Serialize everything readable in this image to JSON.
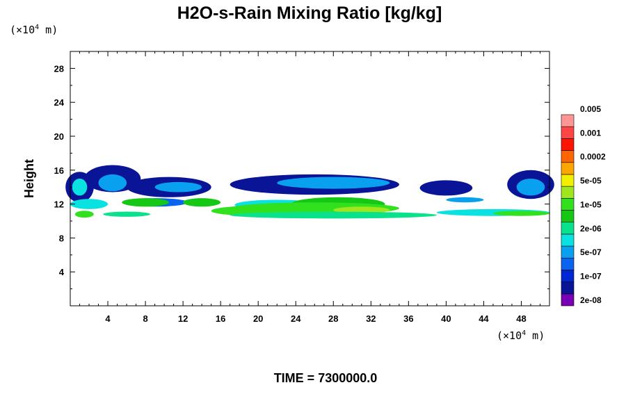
{
  "chart_data": {
    "type": "contour",
    "title": "H2O-s-Rain Mixing Ratio [kg/kg]",
    "ylabel": "Height",
    "xunit": {
      "pre": "(×10",
      "exp": "4",
      "post": " m)"
    },
    "yunit": {
      "pre": "(×10",
      "exp": "4",
      "post": " m)"
    },
    "xlim": [
      0,
      51
    ],
    "ylim": [
      0,
      30
    ],
    "xticks": [
      4,
      8,
      12,
      16,
      20,
      24,
      28,
      32,
      36,
      40,
      44,
      48
    ],
    "yticks": [
      4,
      8,
      12,
      16,
      20,
      24,
      28
    ],
    "footer": "TIME = 7300000.0",
    "colorbar": {
      "colors": [
        "#7800b4",
        "#0a1496",
        "#0028d2",
        "#0a64f0",
        "#0aa0f0",
        "#0ae1e1",
        "#0ae18c",
        "#14c814",
        "#32e11e",
        "#a0e61e",
        "#f0f000",
        "#ffa500",
        "#ff6400",
        "#ff1400",
        "#ff4646",
        "#ff9696"
      ],
      "labels": [
        "2e-08",
        "1e-07",
        "5e-07",
        "2e-06",
        "1e-05",
        "5e-05",
        "0.0002",
        "0.001",
        "0.005"
      ]
    },
    "blobs": [
      {
        "level": 1,
        "x": 1.0,
        "y": 14.0,
        "w": 1.5,
        "h": 1.8
      },
      {
        "level": 1,
        "x": 4.5,
        "y": 15.0,
        "w": 3.0,
        "h": 1.6
      },
      {
        "level": 1,
        "x": 10.5,
        "y": 14.0,
        "w": 4.5,
        "h": 1.2
      },
      {
        "level": 1,
        "x": 26.0,
        "y": 14.3,
        "w": 9.0,
        "h": 1.2
      },
      {
        "level": 1,
        "x": 40.0,
        "y": 13.9,
        "w": 2.8,
        "h": 0.9
      },
      {
        "level": 1,
        "x": 49.0,
        "y": 14.3,
        "w": 2.5,
        "h": 1.7
      },
      {
        "level": 4,
        "x": 4.5,
        "y": 14.5,
        "w": 1.5,
        "h": 1.0
      },
      {
        "level": 4,
        "x": 28.0,
        "y": 14.5,
        "w": 6.0,
        "h": 0.7
      },
      {
        "level": 4,
        "x": 11.5,
        "y": 14.0,
        "w": 2.5,
        "h": 0.6
      },
      {
        "level": 4,
        "x": 49.0,
        "y": 14.0,
        "w": 1.5,
        "h": 1.0
      },
      {
        "level": 5,
        "x": 1.0,
        "y": 14.0,
        "w": 0.8,
        "h": 1.0
      },
      {
        "level": 3,
        "x": 9.0,
        "y": 12.2,
        "w": 3.5,
        "h": 0.5
      },
      {
        "level": 5,
        "x": 2.0,
        "y": 12.0,
        "w": 2.0,
        "h": 0.6
      },
      {
        "level": 7,
        "x": 8.0,
        "y": 12.2,
        "w": 2.5,
        "h": 0.5
      },
      {
        "level": 7,
        "x": 14.0,
        "y": 12.2,
        "w": 2.0,
        "h": 0.5
      },
      {
        "level": 5,
        "x": 22.0,
        "y": 11.9,
        "w": 4.5,
        "h": 0.6
      },
      {
        "level": 7,
        "x": 28.5,
        "y": 12.0,
        "w": 5.0,
        "h": 0.8
      },
      {
        "level": 8,
        "x": 26.0,
        "y": 11.5,
        "w": 9.0,
        "h": 0.7
      },
      {
        "level": 8,
        "x": 20.0,
        "y": 11.2,
        "w": 5.0,
        "h": 0.6
      },
      {
        "level": 9,
        "x": 31.0,
        "y": 11.3,
        "w": 3.0,
        "h": 0.4
      },
      {
        "level": 6,
        "x": 28.0,
        "y": 10.7,
        "w": 11.0,
        "h": 0.4
      },
      {
        "level": 8,
        "x": 1.5,
        "y": 10.8,
        "w": 1.0,
        "h": 0.4
      },
      {
        "level": 6,
        "x": 6.0,
        "y": 10.8,
        "w": 2.5,
        "h": 0.3
      },
      {
        "level": 5,
        "x": 45.0,
        "y": 11.0,
        "w": 6.0,
        "h": 0.4
      },
      {
        "level": 8,
        "x": 48.0,
        "y": 10.9,
        "w": 3.0,
        "h": 0.3
      },
      {
        "level": 4,
        "x": 42.0,
        "y": 12.5,
        "w": 2.0,
        "h": 0.3
      }
    ]
  }
}
